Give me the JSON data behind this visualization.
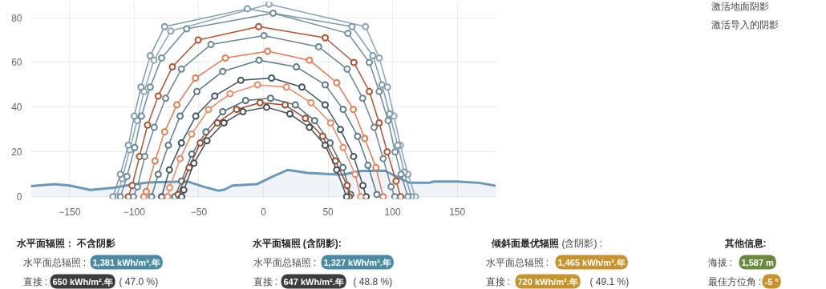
{
  "chart_data": {
    "type": "line",
    "marker": "circle",
    "grid": true,
    "xlim": [
      -180,
      180
    ],
    "ylim": [
      -1,
      87
    ],
    "xticks": [
      -150,
      -100,
      -50,
      0,
      50,
      100,
      150
    ],
    "yticks": [
      0,
      20,
      40,
      60,
      80
    ],
    "series": [
      {
        "type": "area",
        "marker": "none",
        "color": "#6b98b8",
        "x": [
          -180,
          -162,
          -150,
          -134,
          -116,
          -100,
          -88,
          -59,
          -46,
          -35,
          -30,
          -24,
          -5,
          7,
          19,
          34,
          61,
          76,
          94,
          103,
          113,
          128,
          132,
          150,
          167,
          180
        ],
        "values": [
          4.7,
          5.6,
          5,
          3,
          4,
          5.6,
          6.4,
          6.8,
          4.4,
          2.7,
          3.2,
          5,
          5.6,
          9,
          12,
          10.6,
          9.8,
          11.5,
          11.6,
          9,
          6.2,
          6.2,
          6.8,
          6.8,
          6.2,
          4.9
        ]
      },
      {
        "color": "#8aa6b5",
        "x": [
          -113.8,
          -109.3,
          -103.5,
          -97.7,
          -92.4,
          -84.7,
          -71.8,
          4.3,
          79,
          89.6,
          96,
          101,
          106,
          111.8,
          117.6
        ],
        "values": [
          0,
          8,
          21,
          34,
          47,
          61,
          74,
          86,
          76,
          62,
          49,
          36,
          23,
          10,
          0
        ]
      },
      {
        "color": "#7d9aaa",
        "x": [
          -116.5,
          -110.7,
          -104.5,
          -100,
          -94.8,
          -87.6,
          -76.5,
          -12.4,
          68.5,
          84.7,
          91.7,
          97.7,
          104,
          108.9,
          114.5
        ],
        "values": [
          0,
          10,
          23,
          36,
          49,
          63,
          76,
          84,
          76,
          63,
          50,
          37,
          23,
          11,
          0
        ]
      },
      {
        "color": "#6d8c9c",
        "x": [
          -110.7,
          -105.6,
          -99.6,
          -94.4,
          -87.6,
          -78.8,
          -59.4,
          7.5,
          65.4,
          82,
          89.6,
          96.5,
          101.9,
          106.5,
          111.8
        ],
        "values": [
          0,
          9,
          22,
          36,
          49,
          62,
          75,
          82,
          73,
          60,
          47,
          34,
          20,
          10,
          0
        ]
      },
      {
        "color": "#b0532e",
        "x": [
          -104.5,
          -101.6,
          -95.9,
          -89.7,
          -81.4,
          -70.5,
          -50.5,
          -3.7,
          47.8,
          70,
          82,
          89.6,
          95.8,
          102.7,
          106.2
        ],
        "values": [
          0,
          5,
          18,
          32,
          45,
          58,
          70,
          76,
          71,
          60,
          47,
          33,
          20,
          7,
          0
        ]
      },
      {
        "color": "#6a8797",
        "x": [
          -100.6,
          -97.5,
          -91.8,
          -84.5,
          -75.7,
          -63.5,
          -40.6,
          0.4,
          42.7,
          64.8,
          76.8,
          85.7,
          92.7,
          98.8,
          101.7
        ],
        "values": [
          0,
          4.4,
          18,
          31,
          44,
          57,
          68,
          72,
          67,
          57,
          44,
          31,
          17,
          4.5,
          0
        ]
      },
      {
        "color": "#e27b4f",
        "x": [
          -92.6,
          -90.7,
          -83.9,
          -76.5,
          -67,
          -52.6,
          -29.5,
          3.2,
          35.6,
          56.7,
          69.6,
          78.4,
          87.1,
          92.7
        ],
        "values": [
          0,
          2.3,
          16,
          29,
          41,
          53,
          62,
          65,
          61,
          51,
          39,
          26,
          13,
          0
        ]
      },
      {
        "color": "#5b7a8a",
        "x": [
          -86.6,
          -81.4,
          -73.6,
          -64.5,
          -51.5,
          -31.5,
          -3.4,
          25.5,
          47.8,
          61.7,
          72.9,
          80.9,
          87.8
        ],
        "values": [
          0,
          10,
          23,
          36,
          47,
          56,
          61,
          58,
          50,
          39,
          27,
          14,
          1
        ]
      },
      {
        "color": "#3f5563",
        "x": [
          -78.8,
          -72.8,
          -63.5,
          -52.4,
          -37.7,
          -17.5,
          6.3,
          29.8,
          47.8,
          59.6,
          69.8,
          77,
          79.5
        ],
        "values": [
          0,
          12,
          24,
          36,
          45,
          52,
          53,
          49,
          41,
          30,
          18,
          5,
          0
        ]
      },
      {
        "color": "#e98b62",
        "x": [
          -74.2,
          -72.6,
          -64.5,
          -55.5,
          -42.5,
          -25.8,
          -4.6,
          17.8,
          36.8,
          52,
          61.7,
          71,
          75.3
        ],
        "values": [
          0,
          4,
          17,
          28,
          39,
          46,
          50,
          49,
          42,
          33,
          22,
          10,
          0
        ]
      },
      {
        "color": "#52707f",
        "x": [
          -68.7,
          -63.3,
          -55.5,
          -44.5,
          -31.5,
          -13.8,
          5.5,
          24.7,
          39.6,
          51.6,
          61.5,
          67.5
        ],
        "values": [
          0,
          7,
          19,
          29,
          38,
          43,
          44,
          41,
          34,
          24,
          13,
          1
        ]
      },
      {
        "color": "#a14b2a",
        "x": [
          -66,
          -57.5,
          -48.9,
          -35.7,
          -20.8,
          -2.6,
          16.8,
          32.5,
          45.8,
          55.7,
          64.8,
          66.5
        ],
        "values": [
          1,
          13,
          24,
          33,
          39,
          42,
          41,
          35,
          27,
          16,
          5,
          0
        ]
      },
      {
        "color": "#404f58",
        "x": [
          -63.3,
          -61.6,
          -53.8,
          -43.7,
          -30.5,
          -15.9,
          2.4,
          20.5,
          35.6,
          47.8,
          56.7,
          64.4
        ],
        "values": [
          0,
          3,
          15,
          25,
          33,
          38,
          40,
          37,
          31,
          23,
          12,
          0
        ]
      }
    ],
    "annotations": [
      "水平面辐照： 不含阴影",
      "水平面总辐照 :",
      "1,381 kWh/m².年",
      "直接 :",
      "650 kWh/m².年",
      "( 47.0 %)",
      "水平面辐照 (含阴影):",
      "水平面总辐照 :",
      "1,327 kWh/m².年",
      "直接 :",
      "647 kWh/m².年",
      "( 48.8 %)",
      "倾斜面最优辐照",
      "(含阴影) :",
      "水平面总辐照 :",
      "1,465 kWh/m².年",
      "直接 :",
      "720 kWh/m².年",
      "( 49.1 %)",
      "其他信息:",
      "海拔 :",
      "1,587 m",
      "最佳方位角 :",
      "-5 °",
      "激活地面阴影",
      "激活导入的阴影"
    ]
  }
}
